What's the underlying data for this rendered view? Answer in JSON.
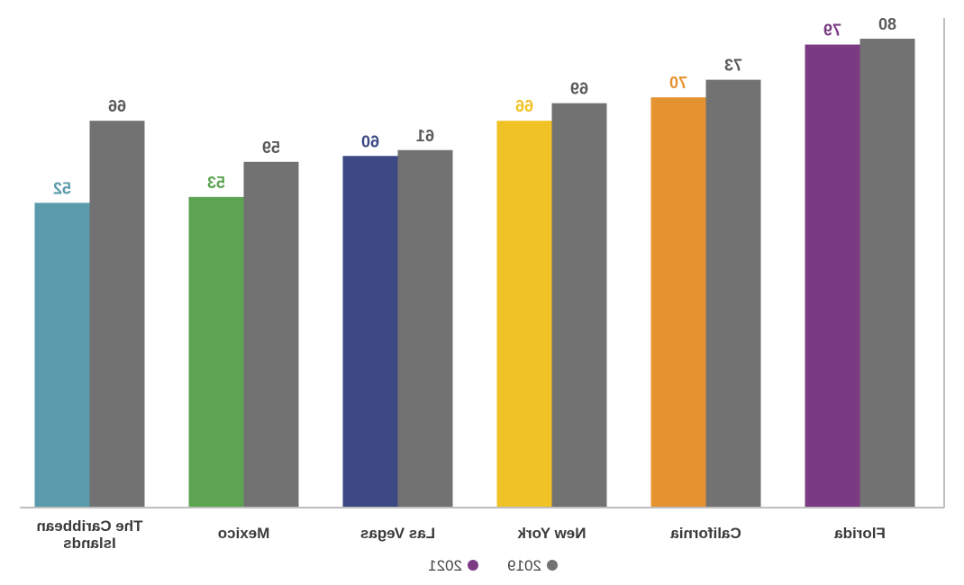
{
  "chart_data": {
    "type": "bar",
    "categories": [
      "Florida",
      "California",
      "New York",
      "Las Vegas",
      "Mexico",
      [
        "The Caribbean",
        "Islands"
      ]
    ],
    "series": [
      {
        "name": "2021",
        "values": [
          79,
          70,
          66,
          60,
          53,
          52
        ],
        "colors": [
          "#7b3b83",
          "#e59330",
          "#f1c226",
          "#3d4985",
          "#5ca451",
          "#5a9aab"
        ],
        "legend_color": "#7b3b83"
      },
      {
        "name": "2019",
        "values": [
          80,
          73,
          69,
          61,
          59,
          66
        ],
        "color": "#727272",
        "legend_color": "#727272"
      }
    ],
    "ylim": [
      0,
      82
    ],
    "grid": false,
    "legend_position": "bottom-center",
    "axis_color": "#bfbfbf"
  }
}
